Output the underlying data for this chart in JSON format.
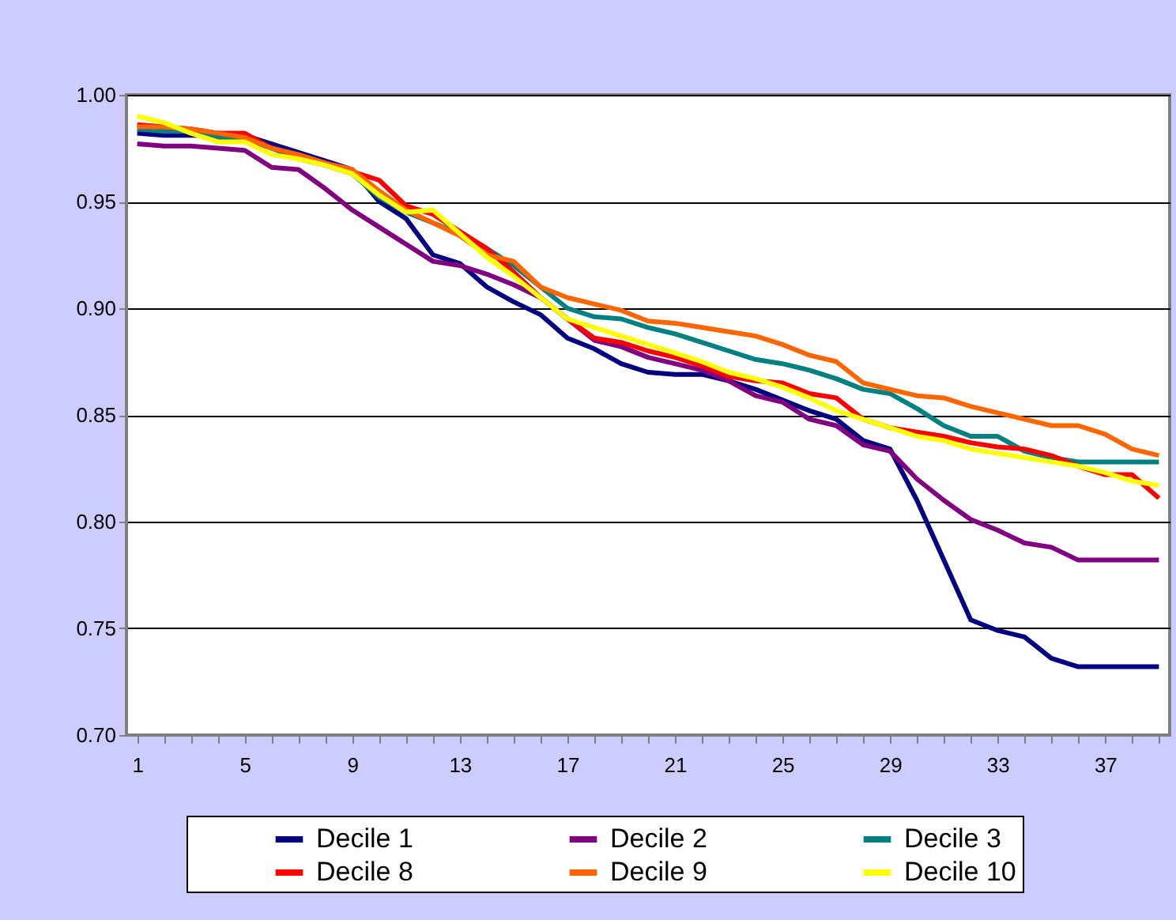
{
  "chart_data": {
    "type": "line",
    "categories": [
      "1",
      null,
      null,
      null,
      "5",
      null,
      null,
      null,
      "9",
      null,
      null,
      null,
      "13",
      null,
      null,
      null,
      "17",
      null,
      null,
      null,
      "21",
      null,
      null,
      null,
      "25",
      null,
      null,
      null,
      "29",
      null,
      null,
      null,
      "33",
      null,
      null,
      null,
      "37",
      null,
      null
    ],
    "ylim": [
      0.7,
      1.0
    ],
    "yticks": [
      {
        "value": 0.7,
        "label": "0.70"
      },
      {
        "value": 0.75,
        "label": "0.75"
      },
      {
        "value": 0.8,
        "label": "0.80"
      },
      {
        "value": 0.85,
        "label": "0.85"
      },
      {
        "value": 0.9,
        "label": "0.90"
      },
      {
        "value": 0.95,
        "label": "0.95"
      },
      {
        "value": 1.0,
        "label": "1.00"
      }
    ],
    "grid": "y",
    "legend": "bottom",
    "marker": "none",
    "line_style": "solid",
    "series": [
      {
        "name": "Decile 1",
        "color": "#000080",
        "values": [
          0.982,
          0.981,
          0.981,
          0.981,
          0.981,
          0.977,
          0.973,
          0.969,
          0.965,
          0.95,
          0.942,
          0.925,
          0.921,
          0.91,
          0.903,
          0.897,
          0.886,
          0.881,
          0.874,
          0.87,
          0.869,
          0.869,
          0.866,
          0.862,
          0.857,
          0.852,
          0.848,
          0.838,
          0.834,
          0.81,
          0.782,
          0.754,
          0.749,
          0.746,
          0.736,
          0.732,
          0.732,
          0.732,
          0.732
        ]
      },
      {
        "name": "Decile 2",
        "color": "#800080",
        "values": [
          0.977,
          0.976,
          0.976,
          0.975,
          0.974,
          0.966,
          0.965,
          0.956,
          0.946,
          0.938,
          0.93,
          0.922,
          0.92,
          0.916,
          0.911,
          0.905,
          0.895,
          0.885,
          0.882,
          0.877,
          0.874,
          0.871,
          0.866,
          0.859,
          0.856,
          0.848,
          0.845,
          0.836,
          0.833,
          0.82,
          0.81,
          0.801,
          0.796,
          0.79,
          0.788,
          0.782,
          0.782,
          0.782,
          0.782
        ]
      },
      {
        "name": "Decile 3",
        "color": "#008080",
        "values": [
          0.984,
          0.983,
          0.983,
          0.98,
          0.979,
          0.975,
          0.97,
          0.967,
          0.963,
          0.952,
          0.945,
          0.94,
          0.935,
          0.928,
          0.92,
          0.91,
          0.9,
          0.896,
          0.895,
          0.891,
          0.888,
          0.884,
          0.88,
          0.876,
          0.874,
          0.871,
          0.867,
          0.862,
          0.86,
          0.853,
          0.845,
          0.84,
          0.84,
          0.833,
          0.83,
          0.828,
          0.828,
          0.828,
          0.828
        ]
      },
      {
        "name": "Decile 8",
        "color": "#ff0000",
        "values": [
          0.986,
          0.985,
          0.984,
          0.982,
          0.982,
          0.975,
          0.972,
          0.968,
          0.964,
          0.96,
          0.948,
          0.944,
          0.936,
          0.928,
          0.917,
          0.905,
          0.895,
          0.886,
          0.884,
          0.88,
          0.877,
          0.873,
          0.868,
          0.866,
          0.865,
          0.86,
          0.858,
          0.848,
          0.844,
          0.842,
          0.84,
          0.837,
          0.835,
          0.834,
          0.831,
          0.826,
          0.822,
          0.822,
          0.811
        ]
      },
      {
        "name": "Decile 9",
        "color": "#ff6600",
        "values": [
          0.985,
          0.985,
          0.984,
          0.982,
          0.98,
          0.975,
          0.972,
          0.968,
          0.965,
          0.955,
          0.946,
          0.94,
          0.934,
          0.925,
          0.922,
          0.91,
          0.905,
          0.902,
          0.899,
          0.894,
          0.893,
          0.891,
          0.889,
          0.887,
          0.883,
          0.878,
          0.875,
          0.865,
          0.862,
          0.859,
          0.858,
          0.854,
          0.851,
          0.848,
          0.845,
          0.845,
          0.841,
          0.834,
          0.831
        ]
      },
      {
        "name": "Decile 10",
        "color": "#ffff00",
        "values": [
          0.99,
          0.987,
          0.982,
          0.978,
          0.978,
          0.972,
          0.97,
          0.967,
          0.963,
          0.953,
          0.945,
          0.946,
          0.935,
          0.924,
          0.915,
          0.905,
          0.895,
          0.891,
          0.887,
          0.883,
          0.879,
          0.875,
          0.87,
          0.867,
          0.863,
          0.858,
          0.852,
          0.848,
          0.844,
          0.84,
          0.838,
          0.834,
          0.832,
          0.83,
          0.828,
          0.826,
          0.823,
          0.819,
          0.817
        ]
      }
    ]
  }
}
